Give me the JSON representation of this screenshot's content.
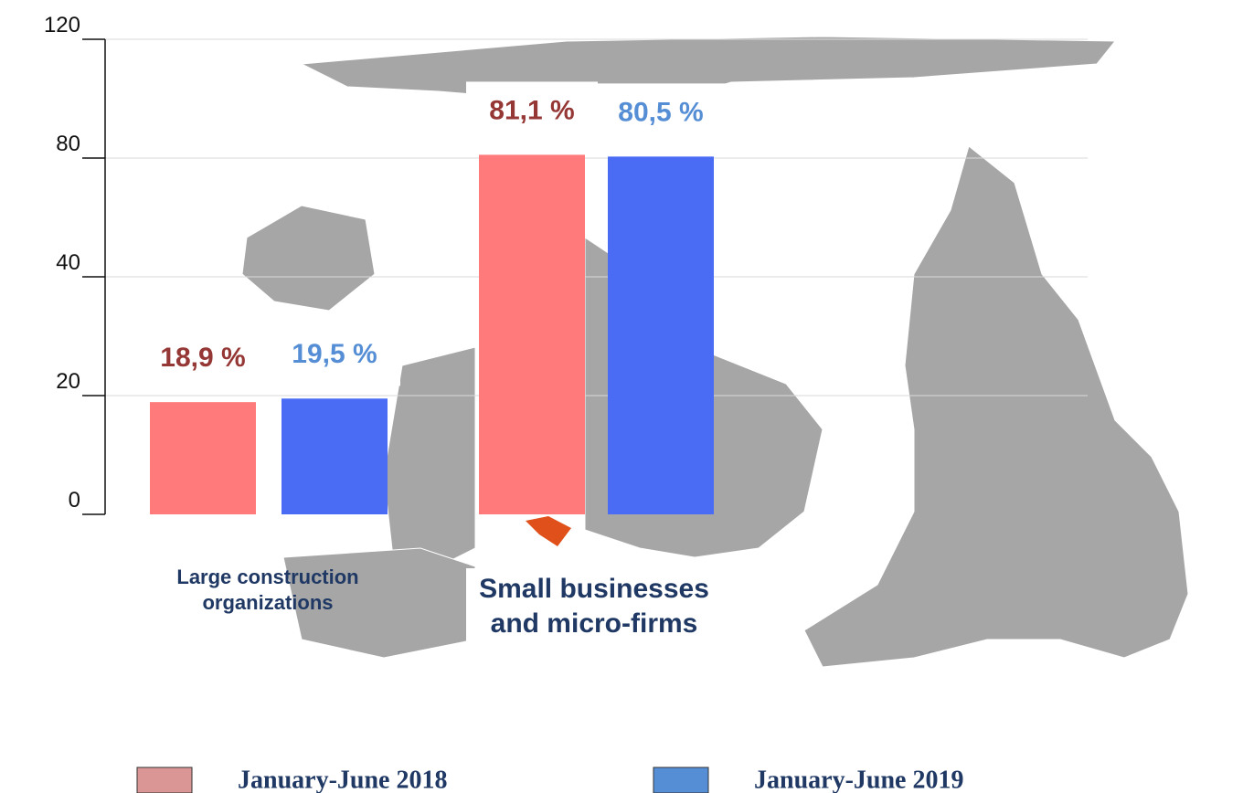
{
  "chart_data": {
    "type": "bar",
    "categories": [
      "Large construction organizations",
      "Small businesses and micro-firms"
    ],
    "series": [
      {
        "name": "January-June 2018",
        "color": "#ff7b7b",
        "legend_color": "#d99694",
        "label_color": "#953735",
        "values": [
          18.9,
          81.1
        ],
        "value_labels": [
          "18,9 %",
          "81,1 %"
        ]
      },
      {
        "name": "January-June 2019",
        "color": "#4a6cf5",
        "legend_color": "#558ed5",
        "label_color": "#558ed5",
        "values": [
          19.5,
          80.5
        ],
        "value_labels": [
          "19,5 %",
          "80,5 %"
        ]
      }
    ],
    "ylim": [
      0,
      120
    ],
    "yticks": [
      0,
      20,
      40,
      80,
      120
    ],
    "grid": true
  }
}
